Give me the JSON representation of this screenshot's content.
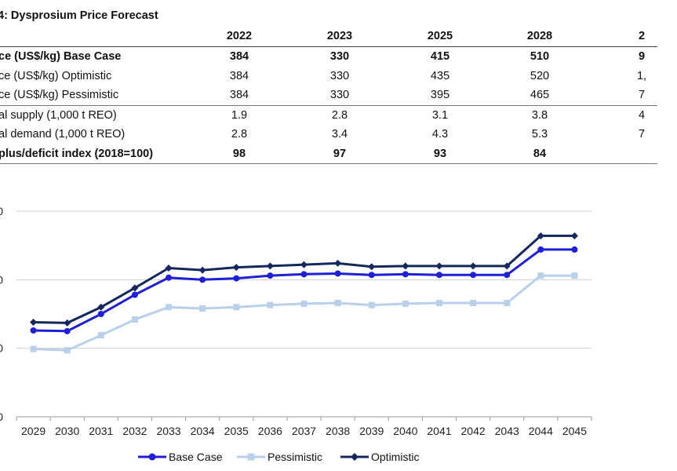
{
  "table": {
    "title": "4: Dysprosium Price Forecast",
    "columns": [
      "2022",
      "2023",
      "2025",
      "2028",
      "2"
    ],
    "rows": [
      {
        "label": "ce (US$/kg) Base Case",
        "values": [
          "384",
          "330",
          "415",
          "510",
          "9"
        ]
      },
      {
        "label": "ce (US$/kg) Optimistic",
        "values": [
          "384",
          "330",
          "435",
          "520",
          "1,"
        ]
      },
      {
        "label": "ce (US$/kg) Pessimistic",
        "values": [
          "384",
          "330",
          "395",
          "465",
          "7"
        ]
      },
      {
        "label": "al supply (1,000 t REO)",
        "values": [
          "1.9",
          "2.8",
          "3.1",
          "3.8",
          "4"
        ]
      },
      {
        "label": "al demand (1,000 t REO)",
        "values": [
          "2.8",
          "3.4",
          "4.3",
          "5.3",
          "7"
        ]
      },
      {
        "label": "plus/deficit index (2018=100)",
        "values": [
          "98",
          "97",
          "93",
          "84",
          ""
        ]
      }
    ]
  },
  "chart_data": {
    "type": "line",
    "x": [
      "2029",
      "2030",
      "2031",
      "2032",
      "2033",
      "2034",
      "2035",
      "2036",
      "2037",
      "2038",
      "2039",
      "2040",
      "2041",
      "2042",
      "2043",
      "2044",
      "2045"
    ],
    "ytick_labels": [
      "0",
      "0",
      "0",
      "0"
    ],
    "ylim": [
      0,
      300
    ],
    "grid": true,
    "legend_position": "bottom",
    "series": [
      {
        "name": "Base Case",
        "color": "#1f1fd6",
        "marker": "circle",
        "values": [
          126,
          125,
          150,
          178,
          203,
          200,
          202,
          206,
          208,
          209,
          207,
          208,
          207,
          207,
          207,
          244,
          244
        ]
      },
      {
        "name": "Pessimistic",
        "color": "#b8d0ea",
        "marker": "square",
        "values": [
          99,
          97,
          119,
          142,
          160,
          158,
          160,
          163,
          165,
          166,
          163,
          165,
          166,
          166,
          166,
          206,
          206
        ]
      },
      {
        "name": "Optimistic",
        "color": "#14285e",
        "marker": "diamond",
        "values": [
          138,
          137,
          160,
          188,
          217,
          214,
          218,
          220,
          222,
          224,
          219,
          220,
          220,
          220,
          220,
          264,
          264
        ]
      }
    ]
  }
}
